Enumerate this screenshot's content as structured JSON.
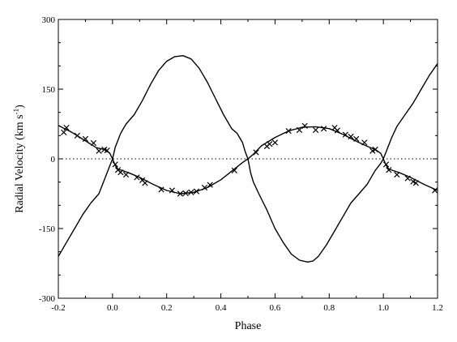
{
  "chart_data": {
    "type": "line",
    "title": "",
    "xlabel": "Phase",
    "ylabel": "Radial Velocity (km s",
    "ylabel_sup": "-1",
    "ylabel_end": ")",
    "xlim": [
      -0.2,
      1.2
    ],
    "ylim": [
      -300,
      300
    ],
    "x_ticks": [
      -0.2,
      0.0,
      0.2,
      0.4,
      0.6,
      0.8,
      1.0,
      1.2
    ],
    "x_tick_labels": [
      "-0.2",
      "0.0",
      "0.2",
      "0.4",
      "0.6",
      "0.8",
      "1.0",
      "1.2"
    ],
    "y_ticks": [
      -300,
      -150,
      0,
      150,
      300
    ],
    "y_tick_labels": [
      "-300",
      "-150",
      "0",
      "150",
      "300"
    ],
    "grid": false,
    "legend": "none",
    "zero_line": {
      "y": 0,
      "style": "dotted"
    },
    "colors": {
      "line": "#000000",
      "marker": "#000000",
      "zero_line": "#000000"
    },
    "series": [
      {
        "style": "line",
        "x": [
          -0.2,
          -0.17,
          -0.14,
          -0.11,
          -0.08,
          -0.05,
          -0.03,
          -0.01,
          0.0,
          0.01,
          0.03,
          0.05,
          0.08,
          0.11,
          0.14,
          0.17,
          0.2,
          0.23,
          0.26,
          0.29,
          0.32,
          0.35,
          0.38,
          0.41,
          0.44,
          0.46,
          0.48,
          0.49,
          0.5,
          0.51,
          0.52,
          0.54,
          0.57,
          0.6,
          0.63,
          0.66,
          0.69,
          0.72,
          0.74,
          0.76,
          0.79,
          0.82,
          0.85,
          0.88,
          0.91,
          0.94,
          0.95,
          0.97,
          0.99,
          1.0,
          1.01,
          1.03,
          1.05,
          1.08,
          1.11,
          1.14,
          1.17,
          1.2
        ],
        "y": [
          -210,
          -180,
          -150,
          -120,
          -95,
          -75,
          -45,
          -15,
          0,
          25,
          55,
          75,
          95,
          125,
          160,
          190,
          210,
          220,
          222,
          215,
          195,
          165,
          130,
          95,
          65,
          55,
          35,
          15,
          0,
          -30,
          -50,
          -75,
          -110,
          -150,
          -180,
          -205,
          -218,
          -222,
          -220,
          -210,
          -185,
          -155,
          -125,
          -95,
          -75,
          -55,
          -45,
          -25,
          -10,
          0,
          15,
          45,
          70,
          95,
          120,
          150,
          180,
          205
        ]
      },
      {
        "style": "line",
        "x": [
          -0.2,
          -0.18,
          -0.15,
          -0.12,
          -0.09,
          -0.06,
          -0.03,
          -0.01,
          0.0,
          0.01,
          0.02,
          0.04,
          0.06,
          0.1,
          0.15,
          0.2,
          0.25,
          0.3,
          0.35,
          0.4,
          0.45,
          0.48,
          0.5,
          0.52,
          0.55,
          0.6,
          0.65,
          0.7,
          0.75,
          0.8,
          0.85,
          0.9,
          0.94,
          0.97,
          0.99,
          1.0,
          1.01,
          1.02,
          1.04,
          1.06,
          1.1,
          1.15,
          1.2
        ],
        "y": [
          72,
          66,
          57,
          46,
          35,
          24,
          20,
          12,
          0,
          -14,
          -22,
          -26,
          -30,
          -40,
          -55,
          -68,
          -75,
          -72,
          -62,
          -45,
          -22,
          -8,
          0,
          10,
          28,
          46,
          60,
          68,
          69,
          65,
          53,
          38,
          27,
          20,
          12,
          0,
          -14,
          -22,
          -26,
          -30,
          -40,
          -55,
          -68
        ]
      },
      {
        "style": "markers",
        "marker": "x",
        "x": [
          -0.18,
          -0.17,
          -0.13,
          -0.1,
          -0.07,
          -0.05,
          -0.03,
          -0.02,
          0.01,
          0.02,
          0.03,
          0.05,
          0.09,
          0.11,
          0.12,
          0.18,
          0.22,
          0.25,
          0.27,
          0.29,
          0.31,
          0.34,
          0.36,
          0.45,
          0.53,
          0.57,
          0.58,
          0.6,
          0.65,
          0.69,
          0.71,
          0.75,
          0.78,
          0.82,
          0.83,
          0.86,
          0.88,
          0.9,
          0.93,
          0.96,
          0.97,
          1.01,
          1.02,
          1.05,
          1.09,
          1.11,
          1.12,
          1.19
        ],
        "y": [
          57,
          67,
          50,
          43,
          34,
          17,
          20,
          18,
          -12,
          -24,
          -29,
          -34,
          -40,
          -46,
          -52,
          -66,
          -68,
          -75,
          -74,
          -72,
          -70,
          -62,
          -56,
          -25,
          14,
          27,
          32,
          35,
          60,
          62,
          71,
          62,
          65,
          67,
          61,
          52,
          48,
          43,
          35,
          17,
          20,
          -12,
          -24,
          -34,
          -42,
          -49,
          -52,
          -68
        ]
      }
    ]
  }
}
